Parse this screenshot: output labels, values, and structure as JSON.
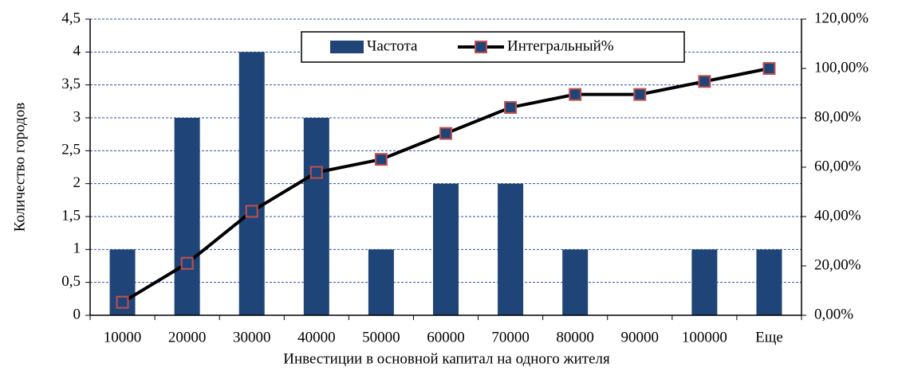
{
  "chart_data": {
    "type": "bar",
    "x_label": "Инвестиции в основной капитал на одного жителя",
    "y_label": "Количество городов",
    "categories": [
      "10000",
      "20000",
      "30000",
      "40000",
      "50000",
      "60000",
      "70000",
      "80000",
      "90000",
      "100000",
      "Еще"
    ],
    "series": [
      {
        "name": "Частота",
        "type": "bar",
        "color": "#1f4478",
        "values": [
          1,
          3,
          4,
          3,
          1,
          2,
          2,
          1,
          0,
          1,
          1
        ]
      },
      {
        "name": "Интегральный%",
        "type": "line",
        "axis": "y2",
        "color": "#000000",
        "marker_fill": "#1f4478",
        "marker_edge": "#c0504d",
        "values": [
          5.26,
          21.05,
          42.11,
          57.89,
          63.16,
          73.68,
          84.21,
          89.47,
          89.47,
          94.74,
          100
        ]
      }
    ],
    "ylim": [
      0,
      4.5
    ],
    "yticks": [
      0,
      {
        "value": 0.5,
        "label": "0,5"
      },
      1,
      {
        "value": 1.5,
        "label": "1,5"
      },
      2,
      {
        "value": 2.5,
        "label": "2,5"
      },
      3,
      {
        "value": 3.5,
        "label": "3,5"
      },
      4,
      {
        "value": 4.5,
        "label": "4,5"
      }
    ],
    "y2lim": [
      0,
      120
    ],
    "y2ticks": [
      {
        "value": 0,
        "label": "0,00%"
      },
      {
        "value": 20,
        "label": "20,00%"
      },
      {
        "value": 40,
        "label": "40,00%"
      },
      {
        "value": 60,
        "label": "60,00%"
      },
      {
        "value": 80,
        "label": "80,00%"
      },
      {
        "value": 100,
        "label": "100,00%"
      },
      {
        "value": 120,
        "label": "120,00%"
      }
    ],
    "grid": true,
    "legend": "top"
  }
}
